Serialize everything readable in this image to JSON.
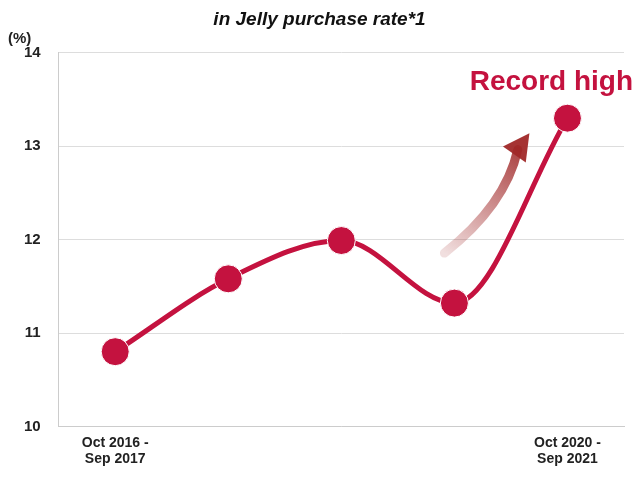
{
  "chart_data": {
    "type": "line",
    "title": "in Jelly purchase rate*1",
    "ylabel": "(%)",
    "annotation": "Record high",
    "categories": [
      "Oct 2016 - Sep 2017",
      null,
      null,
      null,
      "Oct 2020 - Sep 2021"
    ],
    "values": [
      10.8,
      11.58,
      11.99,
      11.32,
      13.3
    ],
    "color": "#c4123f",
    "marker": "circle",
    "line_style": "solid",
    "ylim": [
      10,
      14
    ],
    "yticks": [
      10,
      11,
      12,
      13,
      14
    ],
    "grid": true
  }
}
